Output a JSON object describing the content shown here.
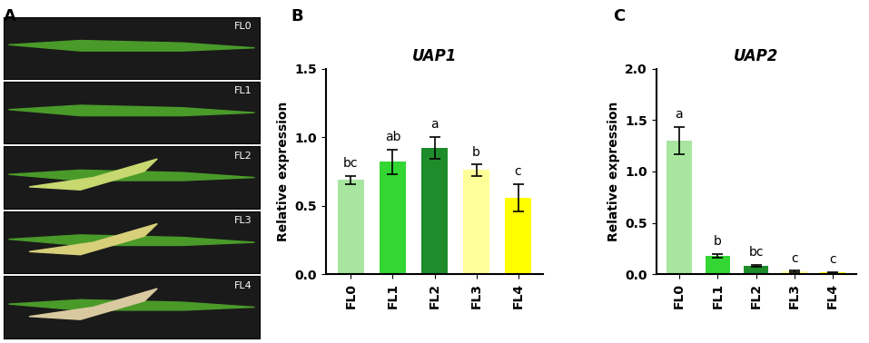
{
  "panel_a": {
    "panel_label": "A",
    "image_labels": [
      "FL0",
      "FL1",
      "FL2",
      "FL3",
      "FL4"
    ]
  },
  "chart_data": [
    {
      "type": "bar",
      "panel_label": "B",
      "title": "UAP1",
      "y_label": "Relative expression",
      "categories": [
        "FL0",
        "FL1",
        "FL2",
        "FL3",
        "FL4"
      ],
      "values": [
        0.69,
        0.82,
        0.92,
        0.76,
        0.56
      ],
      "errors": [
        0.03,
        0.09,
        0.08,
        0.04,
        0.1
      ],
      "significance": [
        "bc",
        "ab",
        "a",
        "b",
        "c"
      ],
      "colors": [
        "#a8e6a0",
        "#33d633",
        "#1e8c2a",
        "#ffff99",
        "#ffff00"
      ],
      "ylim": [
        0,
        1.5
      ],
      "yticks": [
        {
          "value": 0,
          "label": "0.0"
        },
        0.5,
        {
          "value": 1,
          "label": "1.0"
        },
        1.5
      ]
    },
    {
      "type": "bar",
      "panel_label": "C",
      "title": "UAP2",
      "y_label": "Relative expression",
      "categories": [
        "FL0",
        "FL1",
        "FL2",
        "FL3",
        "FL4"
      ],
      "values": [
        1.3,
        0.18,
        0.08,
        0.03,
        0.02
      ],
      "errors": [
        0.13,
        0.02,
        0.01,
        0.005,
        0.005
      ],
      "significance": [
        "a",
        "b",
        "bc",
        "c",
        "c"
      ],
      "colors": [
        "#a8e6a0",
        "#33d633",
        "#1e8c2a",
        "#ffff99",
        "#ffff00"
      ],
      "ylim": [
        0,
        2
      ],
      "yticks": [
        {
          "value": 0,
          "label": "0.0"
        },
        0.5,
        {
          "value": 1,
          "label": "1.0"
        },
        1.5,
        {
          "value": 2,
          "label": "2.0"
        }
      ]
    }
  ]
}
